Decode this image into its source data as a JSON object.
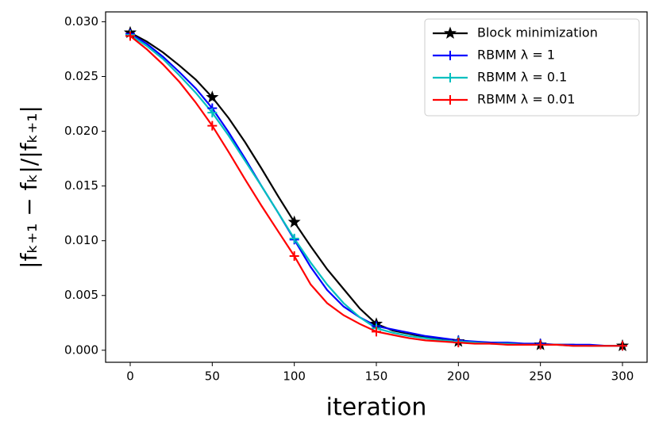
{
  "chart_data": {
    "type": "line",
    "x_label": "iteration",
    "y_label": "|fₖ₊₁ − fₖ|/|fₖ₊₁|",
    "x": [
      0,
      10,
      20,
      30,
      40,
      50,
      60,
      70,
      80,
      90,
      100,
      110,
      120,
      130,
      140,
      150,
      160,
      170,
      180,
      190,
      200,
      210,
      220,
      230,
      240,
      250,
      260,
      270,
      280,
      290,
      300
    ],
    "series": [
      {
        "name": "Block minimization",
        "color": "#000000",
        "marker": "star",
        "values": [
          0.029,
          0.0282,
          0.0272,
          0.026,
          0.0247,
          0.0231,
          0.0212,
          0.019,
          0.0166,
          0.0141,
          0.0117,
          0.0095,
          0.0074,
          0.0056,
          0.0038,
          0.0024,
          0.0018,
          0.0015,
          0.0012,
          0.001,
          0.0008,
          0.0007,
          0.0006,
          0.0006,
          0.0005,
          0.0005,
          0.0005,
          0.0005,
          0.0004,
          0.0004,
          0.0004
        ]
      },
      {
        "name": "RBMM λ = 1",
        "color": "#0000ff",
        "marker": "plus",
        "values": [
          0.0289,
          0.028,
          0.0268,
          0.0254,
          0.0239,
          0.0221,
          0.0199,
          0.0175,
          0.015,
          0.0126,
          0.0101,
          0.0076,
          0.0055,
          0.004,
          0.003,
          0.0022,
          0.0019,
          0.0016,
          0.0013,
          0.0011,
          0.0009,
          0.0008,
          0.0007,
          0.0007,
          0.0006,
          0.0006,
          0.0005,
          0.0005,
          0.0005,
          0.0004,
          0.0004
        ]
      },
      {
        "name": "RBMM λ = 0.1",
        "color": "#00bfbf",
        "marker": "plus",
        "values": [
          0.0288,
          0.0278,
          0.0266,
          0.0251,
          0.0235,
          0.0217,
          0.0196,
          0.0173,
          0.015,
          0.0126,
          0.0102,
          0.008,
          0.006,
          0.0043,
          0.003,
          0.002,
          0.0016,
          0.0013,
          0.0011,
          0.0009,
          0.0008,
          0.0007,
          0.0006,
          0.0006,
          0.0005,
          0.0005,
          0.0005,
          0.0004,
          0.0004,
          0.0004,
          0.0004
        ]
      },
      {
        "name": "RBMM λ = 0.01",
        "color": "#ff0000",
        "marker": "plus",
        "values": [
          0.0287,
          0.0275,
          0.0261,
          0.0245,
          0.0226,
          0.0205,
          0.0181,
          0.0156,
          0.0132,
          0.0109,
          0.0086,
          0.006,
          0.0043,
          0.0032,
          0.0024,
          0.0017,
          0.0014,
          0.0011,
          0.0009,
          0.0008,
          0.0007,
          0.0006,
          0.0006,
          0.0005,
          0.0005,
          0.0005,
          0.0005,
          0.0004,
          0.0004,
          0.0004,
          0.0004
        ]
      }
    ],
    "markevery": 5,
    "xlim": [
      -15,
      315
    ],
    "ylim": [
      -0.0011,
      0.0309
    ],
    "xticks": [
      0,
      50,
      100,
      150,
      200,
      250,
      300
    ],
    "yticks": [
      {
        "value": 0,
        "label": "0.000"
      },
      {
        "value": 0.005,
        "label": "0.005"
      },
      {
        "value": 0.01,
        "label": "0.010"
      },
      {
        "value": 0.015,
        "label": "0.015"
      },
      {
        "value": 0.02,
        "label": "0.020"
      },
      {
        "value": 0.025,
        "label": "0.025"
      },
      {
        "value": 0.03,
        "label": "0.030"
      }
    ],
    "legend": "upper right",
    "grid": false
  }
}
